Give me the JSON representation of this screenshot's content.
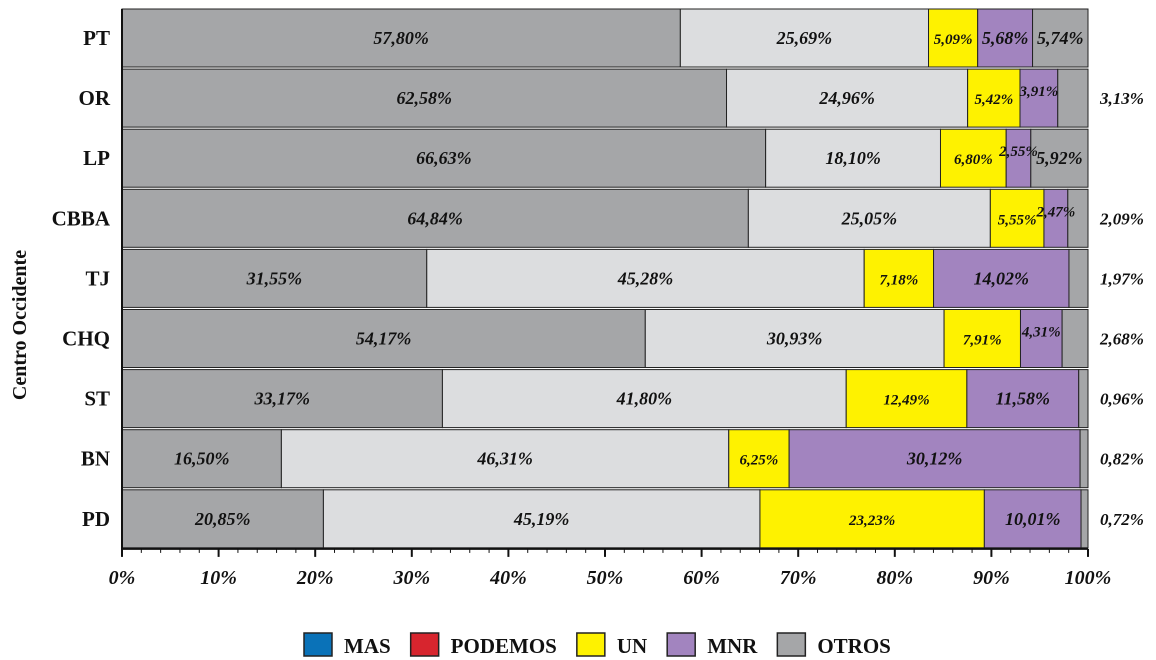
{
  "chart_data": {
    "type": "bar",
    "orientation": "horizontal",
    "stacked": true,
    "percent": true,
    "title": "",
    "ylabel": "Centro Occidente",
    "xlabel": "",
    "xlim": [
      0,
      100
    ],
    "x_ticks": [
      "0%",
      "10%",
      "20%",
      "30%",
      "40%",
      "50%",
      "60%",
      "70%",
      "80%",
      "90%",
      "100%"
    ],
    "grid": false,
    "legend_position": "bottom",
    "categories": [
      "PT",
      "OR",
      "LP",
      "CBBA",
      "TJ",
      "CHQ",
      "ST",
      "BN",
      "PD"
    ],
    "series": [
      {
        "name": "MAS",
        "color": "#a5a6a8",
        "legend_color": "#0a72b8",
        "values": [
          57.8,
          62.58,
          66.63,
          64.84,
          31.55,
          54.17,
          33.17,
          16.5,
          20.85
        ],
        "labels": [
          "57,80%",
          "62,58%",
          "66,63%",
          "64,84%",
          "31,55%",
          "54,17%",
          "33,17%",
          "16,50%",
          "20,85%"
        ]
      },
      {
        "name": "PODEMOS",
        "color": "#dcdddf",
        "legend_color": "#d7252e",
        "values": [
          25.69,
          24.96,
          18.1,
          25.05,
          45.28,
          30.93,
          41.8,
          46.31,
          45.19
        ],
        "labels": [
          "25,69%",
          "24,96%",
          "18,10%",
          "25,05%",
          "45,28%",
          "30,93%",
          "41,80%",
          "46,31%",
          "45,19%"
        ]
      },
      {
        "name": "UN",
        "color": "#fef200",
        "legend_color": "#fef200",
        "values": [
          5.09,
          5.42,
          6.8,
          5.55,
          7.18,
          7.91,
          12.49,
          6.25,
          23.23
        ],
        "labels": [
          "5,09%",
          "5,42%",
          "6,80%",
          "5,55%",
          "7,18%",
          "7,91%",
          "12,49%",
          "6,25%",
          "23,23%"
        ]
      },
      {
        "name": "MNR",
        "color": "#a284bf",
        "legend_color": "#a284bf",
        "values": [
          5.68,
          3.91,
          2.55,
          2.47,
          14.02,
          4.31,
          11.58,
          30.12,
          10.01
        ],
        "labels": [
          "5,68%",
          "3,91%",
          "2,55%",
          "2,47%",
          "14,02%",
          "4,31%",
          "11,58%",
          "30,12%",
          "10,01%"
        ]
      },
      {
        "name": "OTROS",
        "color": "#a5a6a8",
        "legend_color": "#a5a6a8",
        "values": [
          5.74,
          3.13,
          5.92,
          2.09,
          1.97,
          2.68,
          0.96,
          0.82,
          0.72
        ],
        "labels": [
          "5,74%",
          "3,13%",
          "5,92%",
          "2,09%",
          "1,97%",
          "2,68%",
          "0,96%",
          "0,82%",
          "0,72%"
        ]
      }
    ]
  }
}
